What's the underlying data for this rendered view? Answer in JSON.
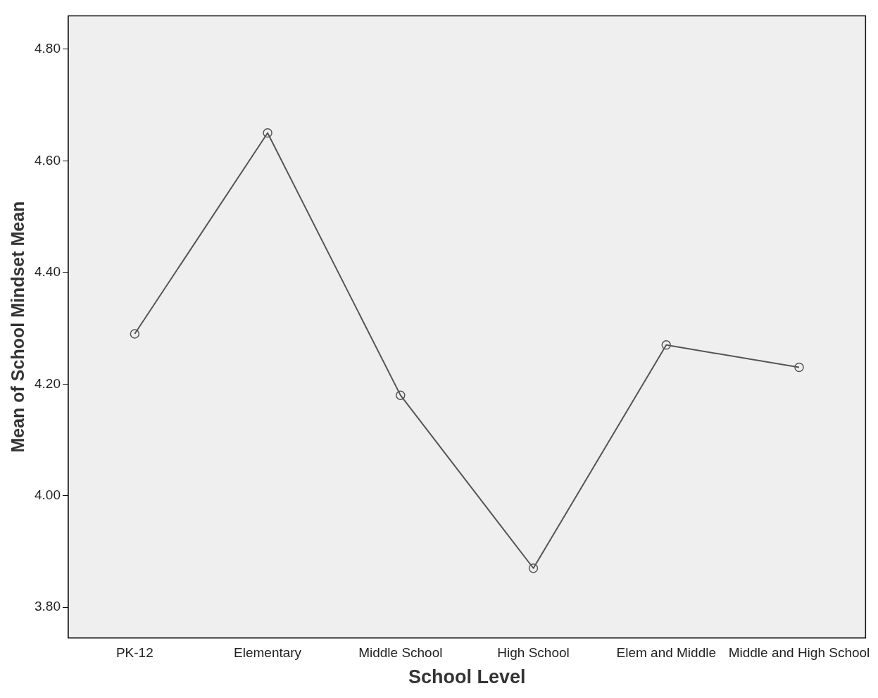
{
  "chart_data": {
    "type": "line",
    "xlabel": "School Level",
    "ylabel": "Mean of School Mindset Mean",
    "categories": [
      "PK-12",
      "Elementary",
      "Middle School",
      "High School",
      "Elem and Middle",
      "Middle and High School"
    ],
    "series": [
      {
        "color": "#555555",
        "values": [
          4.29,
          4.65,
          4.18,
          3.87,
          4.27,
          4.23
        ]
      }
    ],
    "ylim": [
      3.745,
      4.86
    ],
    "yticks": [
      {
        "value": 3.8,
        "label": "3.80"
      },
      {
        "value": 4.0,
        "label": "4.00"
      },
      {
        "value": 4.2,
        "label": "4.20"
      },
      {
        "value": 4.4,
        "label": "4.40"
      },
      {
        "value": 4.6,
        "label": "4.60"
      },
      {
        "value": 4.8,
        "label": "4.80"
      }
    ],
    "grid": false,
    "legend": false,
    "marker": "circle",
    "line_style": "solid"
  }
}
